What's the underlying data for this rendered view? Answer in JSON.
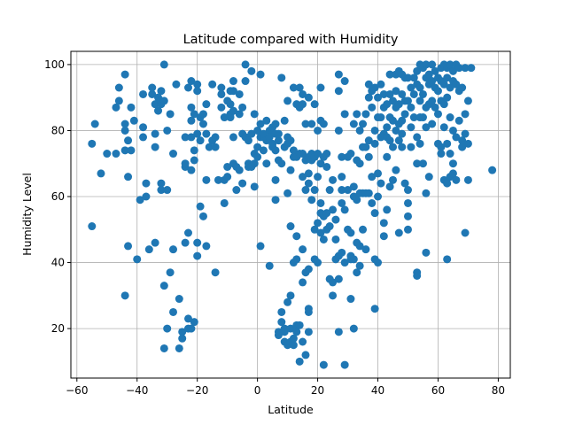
{
  "chart_data": {
    "type": "scatter",
    "title": "Latitude compared with Humidity",
    "xlabel": "Latitude",
    "ylabel": "Humidity Level",
    "xlim": [
      -62,
      84
    ],
    "ylim": [
      5,
      104
    ],
    "xticks": [
      -60,
      -40,
      -20,
      0,
      20,
      40,
      60,
      80
    ],
    "yticks": [
      20,
      40,
      60,
      80,
      100
    ],
    "grid": true,
    "color": "#1f77b4",
    "points": [
      [
        -55,
        51
      ],
      [
        -55,
        76
      ],
      [
        -54,
        82
      ],
      [
        -52,
        67
      ],
      [
        -50,
        73
      ],
      [
        -47,
        73
      ],
      [
        -47,
        87
      ],
      [
        -46,
        89
      ],
      [
        -46,
        93
      ],
      [
        -44,
        97
      ],
      [
        -44,
        80
      ],
      [
        -44,
        82
      ],
      [
        -44,
        74
      ],
      [
        -43,
        77
      ],
      [
        -43,
        66
      ],
      [
        -43,
        45
      ],
      [
        -44,
        30
      ],
      [
        -42,
        74
      ],
      [
        -42,
        87
      ],
      [
        -41,
        83
      ],
      [
        -40,
        41
      ],
      [
        -39,
        59
      ],
      [
        -38,
        78
      ],
      [
        -38,
        81
      ],
      [
        -38,
        91
      ],
      [
        -37,
        64
      ],
      [
        -37,
        60
      ],
      [
        -36,
        44
      ],
      [
        -35,
        91
      ],
      [
        -35,
        93
      ],
      [
        -34,
        88
      ],
      [
        -34,
        75
      ],
      [
        -34,
        79
      ],
      [
        -34,
        46
      ],
      [
        -33,
        90
      ],
      [
        -33,
        86
      ],
      [
        -32,
        88
      ],
      [
        -32,
        92
      ],
      [
        -32,
        89
      ],
      [
        -32,
        64
      ],
      [
        -32,
        62
      ],
      [
        -31,
        100
      ],
      [
        -31,
        89
      ],
      [
        -31,
        14
      ],
      [
        -31,
        33
      ],
      [
        -30,
        20
      ],
      [
        -30,
        62
      ],
      [
        -30,
        80
      ],
      [
        -29,
        85
      ],
      [
        -29,
        37
      ],
      [
        -28,
        44
      ],
      [
        -28,
        73
      ],
      [
        -28,
        25
      ],
      [
        -27,
        94
      ],
      [
        -26,
        29
      ],
      [
        -26,
        14
      ],
      [
        -25,
        17
      ],
      [
        -25,
        19
      ],
      [
        -24,
        69
      ],
      [
        -24,
        70
      ],
      [
        -24,
        78
      ],
      [
        -24,
        46
      ],
      [
        -23,
        93
      ],
      [
        -23,
        49
      ],
      [
        -23,
        20
      ],
      [
        -23,
        23
      ],
      [
        -22,
        95
      ],
      [
        -22,
        78
      ],
      [
        -22,
        68
      ],
      [
        -22,
        87
      ],
      [
        -22,
        83
      ],
      [
        -22,
        20
      ],
      [
        -21,
        85
      ],
      [
        -21,
        71
      ],
      [
        -21,
        74
      ],
      [
        -21,
        22
      ],
      [
        -20,
        42
      ],
      [
        -20,
        46
      ],
      [
        -20,
        94
      ],
      [
        -20,
        92
      ],
      [
        -20,
        79
      ],
      [
        -19,
        57
      ],
      [
        -19,
        84
      ],
      [
        -19,
        77
      ],
      [
        -18,
        54
      ],
      [
        -18,
        85
      ],
      [
        -18,
        82
      ],
      [
        -17,
        79
      ],
      [
        -17,
        88
      ],
      [
        -17,
        65
      ],
      [
        -17,
        45
      ],
      [
        -16,
        75
      ],
      [
        -15,
        94
      ],
      [
        -15,
        77
      ],
      [
        -14,
        37
      ],
      [
        -14,
        78
      ],
      [
        -14,
        75
      ],
      [
        -13,
        65
      ],
      [
        -12,
        87
      ],
      [
        -12,
        93
      ],
      [
        -12,
        91
      ],
      [
        -11,
        84
      ],
      [
        -11,
        65
      ],
      [
        -11,
        58
      ],
      [
        -10,
        89
      ],
      [
        -10,
        66
      ],
      [
        -10,
        69
      ],
      [
        -9,
        88
      ],
      [
        -9,
        84
      ],
      [
        -9,
        92
      ],
      [
        -9,
        85
      ],
      [
        -8,
        95
      ],
      [
        -8,
        70
      ],
      [
        -8,
        92
      ],
      [
        -8,
        78
      ],
      [
        -8,
        86
      ],
      [
        -7,
        62
      ],
      [
        -7,
        69
      ],
      [
        -6,
        68
      ],
      [
        -6,
        91
      ],
      [
        -6,
        85
      ],
      [
        -5,
        87
      ],
      [
        -5,
        79
      ],
      [
        -5,
        64
      ],
      [
        -4,
        100
      ],
      [
        -4,
        78
      ],
      [
        -4,
        95
      ],
      [
        -3,
        69
      ],
      [
        -3,
        70
      ],
      [
        -3,
        77
      ],
      [
        -2,
        98
      ],
      [
        -2,
        69
      ],
      [
        -2,
        79
      ],
      [
        -1,
        70
      ],
      [
        -1,
        63
      ],
      [
        -1,
        73
      ],
      [
        -1,
        85
      ],
      [
        0,
        80
      ],
      [
        0,
        75
      ],
      [
        0,
        72
      ],
      [
        1,
        97
      ],
      [
        1,
        82
      ],
      [
        1,
        45
      ],
      [
        1,
        78
      ],
      [
        2,
        78
      ],
      [
        2,
        74
      ],
      [
        2,
        79
      ],
      [
        3,
        83
      ],
      [
        3,
        77
      ],
      [
        3,
        70
      ],
      [
        4,
        80
      ],
      [
        4,
        78
      ],
      [
        4,
        39
      ],
      [
        5,
        81
      ],
      [
        5,
        75
      ],
      [
        5,
        76
      ],
      [
        6,
        79
      ],
      [
        6,
        74
      ],
      [
        6,
        65
      ],
      [
        6,
        59
      ],
      [
        6,
        82
      ],
      [
        7,
        77
      ],
      [
        7,
        79
      ],
      [
        7,
        71
      ],
      [
        7,
        18
      ],
      [
        7,
        19
      ],
      [
        8,
        96
      ],
      [
        8,
        70
      ],
      [
        8,
        25
      ],
      [
        8,
        22
      ],
      [
        9,
        75
      ],
      [
        9,
        83
      ],
      [
        9,
        20
      ],
      [
        9,
        16
      ],
      [
        9,
        19
      ],
      [
        10,
        89
      ],
      [
        10,
        78
      ],
      [
        10,
        76
      ],
      [
        10,
        61
      ],
      [
        10,
        28
      ],
      [
        10,
        15
      ],
      [
        11,
        77
      ],
      [
        11,
        68
      ],
      [
        11,
        51
      ],
      [
        11,
        30
      ],
      [
        11,
        20
      ],
      [
        11,
        16
      ],
      [
        12,
        74
      ],
      [
        12,
        72
      ],
      [
        12,
        93
      ],
      [
        12,
        40
      ],
      [
        12,
        17
      ],
      [
        12,
        15
      ],
      [
        13,
        88
      ],
      [
        13,
        72
      ],
      [
        13,
        48
      ],
      [
        13,
        41
      ],
      [
        13,
        19
      ],
      [
        13,
        21
      ],
      [
        14,
        93
      ],
      [
        14,
        87
      ],
      [
        14,
        73
      ],
      [
        14,
        10
      ],
      [
        14,
        21
      ],
      [
        15,
        91
      ],
      [
        15,
        88
      ],
      [
        15,
        66
      ],
      [
        15,
        73
      ],
      [
        15,
        44
      ],
      [
        15,
        34
      ],
      [
        15,
        16
      ],
      [
        16,
        82
      ],
      [
        16,
        71
      ],
      [
        16,
        62
      ],
      [
        16,
        37
      ],
      [
        16,
        12
      ],
      [
        17,
        90
      ],
      [
        17,
        72
      ],
      [
        17,
        64
      ],
      [
        17,
        67
      ],
      [
        17,
        38
      ],
      [
        17,
        26
      ],
      [
        17,
        25
      ],
      [
        17,
        19
      ],
      [
        18,
        82
      ],
      [
        18,
        73
      ],
      [
        18,
        71
      ],
      [
        18,
        59
      ],
      [
        19,
        88
      ],
      [
        19,
        72
      ],
      [
        19,
        62
      ],
      [
        19,
        50
      ],
      [
        19,
        41
      ],
      [
        20,
        80
      ],
      [
        20,
        73
      ],
      [
        20,
        66
      ],
      [
        20,
        52
      ],
      [
        20,
        40
      ],
      [
        21,
        93
      ],
      [
        21,
        70
      ],
      [
        21,
        83
      ],
      [
        21,
        58
      ],
      [
        21,
        55
      ],
      [
        21,
        49
      ],
      [
        22,
        82
      ],
      [
        22,
        72
      ],
      [
        22,
        54
      ],
      [
        22,
        47
      ],
      [
        22,
        9
      ],
      [
        23,
        69
      ],
      [
        23,
        73
      ],
      [
        23,
        55
      ],
      [
        23,
        50
      ],
      [
        24,
        62
      ],
      [
        24,
        51
      ],
      [
        24,
        35
      ],
      [
        25,
        65
      ],
      [
        25,
        56
      ],
      [
        25,
        34
      ],
      [
        25,
        30
      ],
      [
        26,
        53
      ],
      [
        26,
        47
      ],
      [
        26,
        41
      ],
      [
        27,
        97
      ],
      [
        27,
        92
      ],
      [
        27,
        80
      ],
      [
        27,
        35
      ],
      [
        27,
        42
      ],
      [
        27,
        19
      ],
      [
        28,
        72
      ],
      [
        28,
        66
      ],
      [
        28,
        62
      ],
      [
        28,
        58
      ],
      [
        28,
        43
      ],
      [
        29,
        95
      ],
      [
        29,
        85
      ],
      [
        29,
        56
      ],
      [
        29,
        40
      ],
      [
        29,
        9
      ],
      [
        30,
        72
      ],
      [
        30,
        62
      ],
      [
        30,
        50
      ],
      [
        31,
        73
      ],
      [
        31,
        49
      ],
      [
        31,
        41
      ],
      [
        31,
        42
      ],
      [
        31,
        29
      ],
      [
        32,
        82
      ],
      [
        32,
        63
      ],
      [
        32,
        60
      ],
      [
        32,
        41
      ],
      [
        32,
        20
      ],
      [
        33,
        85
      ],
      [
        33,
        71
      ],
      [
        33,
        59
      ],
      [
        33,
        46
      ],
      [
        33,
        37
      ],
      [
        34,
        80
      ],
      [
        34,
        70
      ],
      [
        34,
        61
      ],
      [
        34,
        45
      ],
      [
        34,
        39
      ],
      [
        35,
        82
      ],
      [
        35,
        75
      ],
      [
        35,
        61
      ],
      [
        35,
        50
      ],
      [
        36,
        85
      ],
      [
        36,
        75
      ],
      [
        36,
        61
      ],
      [
        36,
        44
      ],
      [
        37,
        94
      ],
      [
        37,
        90
      ],
      [
        37,
        77
      ],
      [
        37,
        72
      ],
      [
        37,
        61
      ],
      [
        38,
        92
      ],
      [
        38,
        87
      ],
      [
        38,
        66
      ],
      [
        38,
        58
      ],
      [
        39,
        93
      ],
      [
        39,
        80
      ],
      [
        39,
        76
      ],
      [
        39,
        55
      ],
      [
        39,
        41
      ],
      [
        39,
        26
      ],
      [
        40,
        90
      ],
      [
        40,
        84
      ],
      [
        40,
        67
      ],
      [
        40,
        60
      ],
      [
        40,
        40
      ],
      [
        41,
        94
      ],
      [
        41,
        84
      ],
      [
        41,
        78
      ],
      [
        41,
        64
      ],
      [
        42,
        91
      ],
      [
        42,
        87
      ],
      [
        42,
        79
      ],
      [
        42,
        52
      ],
      [
        42,
        48
      ],
      [
        43,
        88
      ],
      [
        43,
        81
      ],
      [
        43,
        78
      ],
      [
        43,
        72
      ],
      [
        43,
        56
      ],
      [
        44,
        97
      ],
      [
        44,
        91
      ],
      [
        44,
        84
      ],
      [
        44,
        77
      ],
      [
        44,
        63
      ],
      [
        45,
        89
      ],
      [
        45,
        83
      ],
      [
        45,
        75
      ],
      [
        45,
        65
      ],
      [
        46,
        97
      ],
      [
        46,
        92
      ],
      [
        46,
        87
      ],
      [
        46,
        80
      ],
      [
        46,
        68
      ],
      [
        47,
        98
      ],
      [
        47,
        88
      ],
      [
        47,
        82
      ],
      [
        47,
        77
      ],
      [
        47,
        49
      ],
      [
        48,
        97
      ],
      [
        48,
        91
      ],
      [
        48,
        83
      ],
      [
        48,
        79
      ],
      [
        48,
        75
      ],
      [
        49,
        96
      ],
      [
        49,
        89
      ],
      [
        49,
        85
      ],
      [
        49,
        64
      ],
      [
        50,
        96
      ],
      [
        50,
        89
      ],
      [
        50,
        62
      ],
      [
        50,
        58
      ],
      [
        50,
        54
      ],
      [
        50,
        50
      ],
      [
        51,
        93
      ],
      [
        51,
        87
      ],
      [
        51,
        81
      ],
      [
        51,
        75
      ],
      [
        52,
        96
      ],
      [
        52,
        91
      ],
      [
        52,
        84
      ],
      [
        53,
        98
      ],
      [
        53,
        94
      ],
      [
        53,
        78
      ],
      [
        53,
        70
      ],
      [
        53,
        36
      ],
      [
        53,
        37
      ],
      [
        54,
        100
      ],
      [
        54,
        93
      ],
      [
        54,
        89
      ],
      [
        54,
        84
      ],
      [
        54,
        76
      ],
      [
        55,
        99
      ],
      [
        55,
        91
      ],
      [
        55,
        84
      ],
      [
        55,
        70
      ],
      [
        56,
        100
      ],
      [
        56,
        96
      ],
      [
        56,
        87
      ],
      [
        56,
        81
      ],
      [
        56,
        61
      ],
      [
        56,
        43
      ],
      [
        57,
        97
      ],
      [
        57,
        94
      ],
      [
        57,
        88
      ],
      [
        57,
        66
      ],
      [
        58,
        100
      ],
      [
        58,
        95
      ],
      [
        58,
        89
      ],
      [
        58,
        82
      ],
      [
        59,
        98
      ],
      [
        59,
        93
      ],
      [
        59,
        87
      ],
      [
        60,
        96
      ],
      [
        60,
        92
      ],
      [
        60,
        85
      ],
      [
        60,
        76
      ],
      [
        61,
        99
      ],
      [
        61,
        95
      ],
      [
        61,
        89
      ],
      [
        61,
        75
      ],
      [
        61,
        73
      ],
      [
        62,
        100
      ],
      [
        62,
        94
      ],
      [
        62,
        88
      ],
      [
        62,
        81
      ],
      [
        62,
        65
      ],
      [
        63,
        99
      ],
      [
        63,
        96
      ],
      [
        63,
        90
      ],
      [
        63,
        76
      ],
      [
        63,
        64
      ],
      [
        63,
        41
      ],
      [
        64,
        100
      ],
      [
        64,
        93
      ],
      [
        64,
        84
      ],
      [
        64,
        73
      ],
      [
        64,
        66
      ],
      [
        65,
        98
      ],
      [
        65,
        95
      ],
      [
        65,
        80
      ],
      [
        65,
        70
      ],
      [
        65,
        67
      ],
      [
        66,
        100
      ],
      [
        66,
        94
      ],
      [
        66,
        78
      ],
      [
        66,
        65
      ],
      [
        67,
        99
      ],
      [
        67,
        92
      ],
      [
        67,
        83
      ],
      [
        68,
        93
      ],
      [
        68,
        77
      ],
      [
        68,
        75
      ],
      [
        69,
        99
      ],
      [
        69,
        85
      ],
      [
        69,
        79
      ],
      [
        69,
        49
      ],
      [
        70,
        89
      ],
      [
        70,
        76
      ],
      [
        70,
        65
      ],
      [
        71,
        99
      ],
      [
        78,
        68
      ]
    ]
  }
}
